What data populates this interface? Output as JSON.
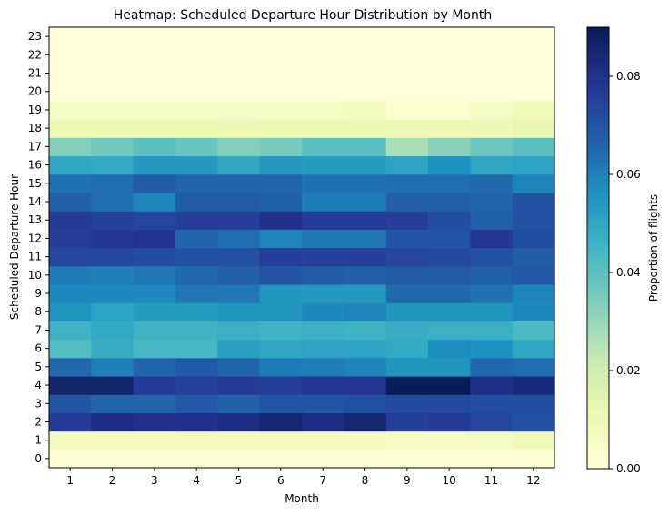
{
  "chart_data": {
    "type": "heatmap",
    "title": "Heatmap: Scheduled Departure Hour Distribution by Month",
    "xlabel": "Month",
    "ylabel": "Scheduled Departure Hour",
    "colorbar_label": "Proportion of flights",
    "colormap": "YlGnBu",
    "color_range": [
      0.0,
      0.09
    ],
    "colorbar_ticks": [
      "0.00",
      "0.02",
      "0.04",
      "0.06",
      "0.08"
    ],
    "colorbar_tick_values": [
      0.0,
      0.02,
      0.04,
      0.06,
      0.08
    ],
    "x": [
      "1",
      "2",
      "3",
      "4",
      "5",
      "6",
      "7",
      "8",
      "9",
      "10",
      "11",
      "12"
    ],
    "y": [
      "0",
      "1",
      "2",
      "3",
      "4",
      "5",
      "6",
      "7",
      "8",
      "9",
      "10",
      "11",
      "12",
      "13",
      "14",
      "15",
      "16",
      "17",
      "18",
      "19",
      "20",
      "21",
      "22",
      "23"
    ],
    "values": [
      [
        0.002,
        0.002,
        0.002,
        0.002,
        0.002,
        0.002,
        0.002,
        0.002,
        0.002,
        0.002,
        0.002,
        0.002
      ],
      [
        0.007,
        0.007,
        0.007,
        0.008,
        0.007,
        0.008,
        0.007,
        0.007,
        0.006,
        0.006,
        0.006,
        0.009
      ],
      [
        0.077,
        0.082,
        0.08,
        0.08,
        0.082,
        0.085,
        0.082,
        0.085,
        0.076,
        0.077,
        0.074,
        0.071
      ],
      [
        0.07,
        0.066,
        0.066,
        0.069,
        0.067,
        0.07,
        0.07,
        0.071,
        0.073,
        0.073,
        0.072,
        0.072
      ],
      [
        0.086,
        0.086,
        0.077,
        0.075,
        0.077,
        0.076,
        0.078,
        0.078,
        0.09,
        0.09,
        0.081,
        0.083
      ],
      [
        0.065,
        0.06,
        0.066,
        0.069,
        0.066,
        0.061,
        0.06,
        0.059,
        0.055,
        0.055,
        0.065,
        0.064
      ],
      [
        0.042,
        0.048,
        0.044,
        0.044,
        0.052,
        0.05,
        0.051,
        0.051,
        0.049,
        0.057,
        0.056,
        0.05
      ],
      [
        0.046,
        0.049,
        0.046,
        0.046,
        0.047,
        0.046,
        0.047,
        0.046,
        0.048,
        0.047,
        0.047,
        0.043
      ],
      [
        0.055,
        0.051,
        0.053,
        0.053,
        0.055,
        0.055,
        0.058,
        0.059,
        0.055,
        0.055,
        0.055,
        0.058
      ],
      [
        0.058,
        0.058,
        0.058,
        0.062,
        0.062,
        0.055,
        0.054,
        0.054,
        0.065,
        0.065,
        0.063,
        0.059
      ],
      [
        0.061,
        0.06,
        0.062,
        0.065,
        0.067,
        0.07,
        0.068,
        0.067,
        0.068,
        0.068,
        0.067,
        0.069
      ],
      [
        0.074,
        0.074,
        0.072,
        0.071,
        0.071,
        0.076,
        0.075,
        0.076,
        0.074,
        0.073,
        0.071,
        0.068
      ],
      [
        0.076,
        0.078,
        0.079,
        0.066,
        0.064,
        0.059,
        0.062,
        0.062,
        0.07,
        0.07,
        0.078,
        0.072
      ],
      [
        0.077,
        0.075,
        0.074,
        0.076,
        0.076,
        0.08,
        0.077,
        0.077,
        0.076,
        0.072,
        0.067,
        0.071
      ],
      [
        0.067,
        0.064,
        0.059,
        0.068,
        0.068,
        0.067,
        0.061,
        0.061,
        0.067,
        0.067,
        0.066,
        0.071
      ],
      [
        0.063,
        0.064,
        0.068,
        0.066,
        0.066,
        0.066,
        0.063,
        0.063,
        0.064,
        0.064,
        0.065,
        0.059
      ],
      [
        0.05,
        0.049,
        0.054,
        0.054,
        0.05,
        0.054,
        0.053,
        0.053,
        0.051,
        0.056,
        0.05,
        0.051
      ],
      [
        0.033,
        0.036,
        0.04,
        0.038,
        0.033,
        0.035,
        0.04,
        0.04,
        0.027,
        0.032,
        0.037,
        0.04
      ],
      [
        0.011,
        0.011,
        0.011,
        0.011,
        0.01,
        0.011,
        0.011,
        0.011,
        0.011,
        0.011,
        0.01,
        0.013
      ],
      [
        0.006,
        0.006,
        0.006,
        0.006,
        0.006,
        0.006,
        0.006,
        0.007,
        0.003,
        0.003,
        0.006,
        0.009
      ],
      [
        0.0,
        0.0,
        0.0,
        0.0,
        0.0,
        0.0,
        0.0,
        0.0,
        0.0,
        0.0,
        0.0,
        0.0
      ],
      [
        0.0,
        0.0,
        0.0,
        0.0,
        0.0,
        0.0,
        0.0,
        0.0,
        0.0,
        0.0,
        0.0,
        0.0
      ],
      [
        0.0,
        0.0,
        0.0,
        0.0,
        0.0,
        0.0,
        0.0,
        0.0,
        0.0,
        0.0,
        0.0,
        0.0
      ],
      [
        0.0,
        0.0,
        0.0,
        0.0,
        0.0,
        0.0,
        0.0,
        0.0,
        0.0,
        0.0,
        0.0,
        0.0
      ]
    ]
  }
}
